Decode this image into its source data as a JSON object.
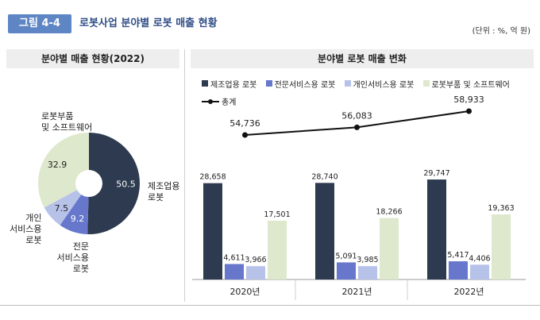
{
  "header": {
    "fig_number": "그림 4-4",
    "title": "로봇사업 분야별 로봇 매출 현황",
    "unit": "(단위 : %, 억 원)"
  },
  "left_panel": {
    "title": "분야별 매출 현황(2022)"
  },
  "right_panel": {
    "title": "분야별 로봇 매출 변화"
  },
  "chart_data": [
    {
      "type": "pie",
      "title": "분야별 매출 현황(2022)",
      "donut": true,
      "slices": [
        {
          "label": "제조업용 로봇",
          "value": 50.5,
          "color": "#2d3a4f"
        },
        {
          "label": "전문 서비스용 로봇",
          "value": 9.2,
          "color": "#6677cc"
        },
        {
          "label": "개인 서비스용 로봇",
          "value": 7.5,
          "color": "#b7c2e9"
        },
        {
          "label": "로봇부품 및 소프트웨어",
          "value": 32.9,
          "color": "#dde8cc"
        }
      ],
      "labels_text": [
        "50.5",
        "9.2",
        "7.5",
        "32.9"
      ]
    },
    {
      "type": "bar",
      "title": "분야별 로봇 매출 변화",
      "categories": [
        "2020년",
        "2021년",
        "2022년"
      ],
      "series": [
        {
          "name": "제조업용 로봇",
          "values": [
            28658,
            28740,
            29747
          ],
          "labels": [
            "28,658",
            "28,740",
            "29,747"
          ],
          "color": "#2d3a4f"
        },
        {
          "name": "전문서비스용 로봇",
          "values": [
            4611,
            5091,
            5417
          ],
          "labels": [
            "4,611",
            "5,091",
            "5,417"
          ],
          "color": "#6677cc"
        },
        {
          "name": "개인서비스용 로봇",
          "values": [
            3966,
            3985,
            4406
          ],
          "labels": [
            "3,966",
            "3,985",
            "4,406"
          ],
          "color": "#b7c2e9"
        },
        {
          "name": "로봇부품 및 소프트웨어",
          "values": [
            17501,
            18266,
            19363
          ],
          "labels": [
            "17,501",
            "18,266",
            "19,363"
          ],
          "color": "#dde8cc"
        }
      ],
      "line_series": {
        "name": "총계",
        "values": [
          54736,
          56083,
          58933
        ],
        "labels": [
          "54,736",
          "56,083",
          "58,933"
        ],
        "color": "#111111"
      },
      "grid": false,
      "legend_position": "top"
    }
  ]
}
